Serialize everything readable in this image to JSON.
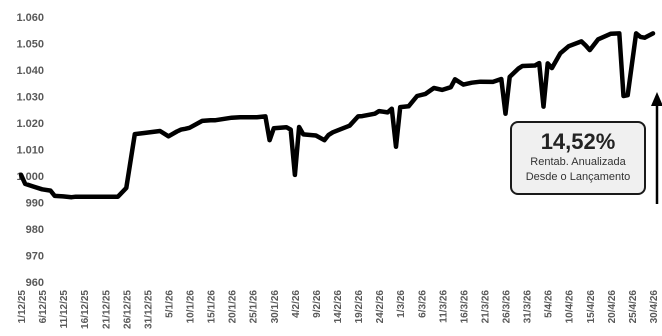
{
  "chart_data": {
    "type": "line",
    "title": "",
    "xlabel": "",
    "ylabel": "",
    "ylim": [
      960,
      1060
    ],
    "yticks": [
      "960",
      "970",
      "980",
      "990",
      "1.000",
      "1.010",
      "1.020",
      "1.030",
      "1.040",
      "1.050",
      "1.060"
    ],
    "grid": false,
    "legend": "none",
    "line_color": "#000000",
    "xticks": [
      "1/12/25",
      "6/12/25",
      "11/12/25",
      "16/12/25",
      "21/12/25",
      "26/12/25",
      "31/12/25",
      "5/1/26",
      "10/1/26",
      "15/1/26",
      "20/1/26",
      "25/1/26",
      "30/1/26",
      "4/2/26",
      "9/2/26",
      "14/2/26",
      "19/2/26",
      "24/2/26",
      "1/3/26",
      "6/3/26",
      "11/3/26",
      "16/3/26",
      "21/3/26",
      "26/3/26",
      "31/3/26",
      "5/4/26",
      "10/4/26",
      "15/4/26",
      "20/4/26",
      "25/4/26",
      "30/4/26"
    ],
    "x": [
      "1/12/25",
      "2/12/25",
      "4/12/25",
      "6/12/25",
      "8/12/25",
      "9/12/25",
      "11/12/25",
      "13/12/25",
      "14/12/25",
      "16/12/25",
      "18/12/25",
      "20/12/25",
      "22/12/25",
      "24/12/25",
      "26/12/25",
      "28/12/25",
      "29/12/25",
      "30/12/25",
      "3/1/26",
      "5/1/26",
      "7/1/26",
      "8/1/26",
      "9/1/26",
      "10/1/26",
      "13/1/26",
      "15/1/26",
      "16/1/26",
      "20/1/26",
      "22/1/26",
      "26/1/26",
      "28/1/26",
      "29/1/26",
      "30/1/26",
      "2/2/26",
      "3/2/26",
      "4/2/26",
      "5/2/26",
      "6/2/26",
      "9/2/26",
      "11/2/26",
      "12/2/26",
      "13/2/26",
      "17/2/26",
      "19/2/26",
      "20/2/26",
      "23/2/26",
      "24/2/26",
      "26/2/26",
      "27/2/26",
      "28/2/26",
      "1/3/26",
      "3/3/26",
      "5/3/26",
      "7/3/26",
      "9/3/26",
      "11/3/26",
      "13/3/26",
      "14/3/26",
      "16/3/26",
      "18/3/26",
      "20/3/26",
      "23/3/26",
      "25/3/26",
      "26/3/26",
      "27/3/26",
      "29/3/26",
      "30/3/26",
      "2/4/26",
      "3/4/26",
      "4/4/26",
      "5/4/26",
      "6/4/26",
      "8/4/26",
      "10/4/26",
      "13/4/26",
      "14/4/26",
      "15/4/26",
      "17/4/26",
      "20/4/26",
      "22/4/26",
      "23/4/26",
      "24/4/26",
      "26/4/26",
      "27/4/26",
      "28/4/26",
      "30/4/26"
    ],
    "values": [
      1000.5,
      997,
      996,
      995,
      994.5,
      992.5,
      992.3,
      992,
      992.2,
      992.2,
      992.2,
      992.2,
      992.2,
      992.2,
      995.5,
      1015.8,
      1016,
      1016.2,
      1017,
      1015,
      1016.8,
      1017.5,
      1017.8,
      1018.2,
      1020.8,
      1021,
      1021,
      1022,
      1022.2,
      1022.2,
      1022.5,
      1013.5,
      1018,
      1018.4,
      1017.5,
      1000.4,
      1018.5,
      1015.7,
      1015.3,
      1013.5,
      1015.5,
      1016.5,
      1019,
      1022.5,
      1022.6,
      1023.5,
      1024.5,
      1024,
      1025.4,
      1011,
      1026,
      1026.3,
      1030.2,
      1031,
      1033.2,
      1032.5,
      1033.5,
      1036.5,
      1034.5,
      1035.2,
      1035.6,
      1035.5,
      1036.6,
      1023.5,
      1037.4,
      1040.5,
      1041.5,
      1041.7,
      1042.6,
      1026.2,
      1042.5,
      1040.7,
      1046.3,
      1049,
      1050.8,
      1049.3,
      1047.5,
      1051.6,
      1053.7,
      1053.8,
      1030.2,
      1030.5,
      1053.8,
      1052.5,
      1052.2,
      1053.8
    ]
  },
  "callout": {
    "value": "14,52%",
    "line1": "Rentab. Anualizada",
    "line2": "Desde o Lançamento"
  }
}
